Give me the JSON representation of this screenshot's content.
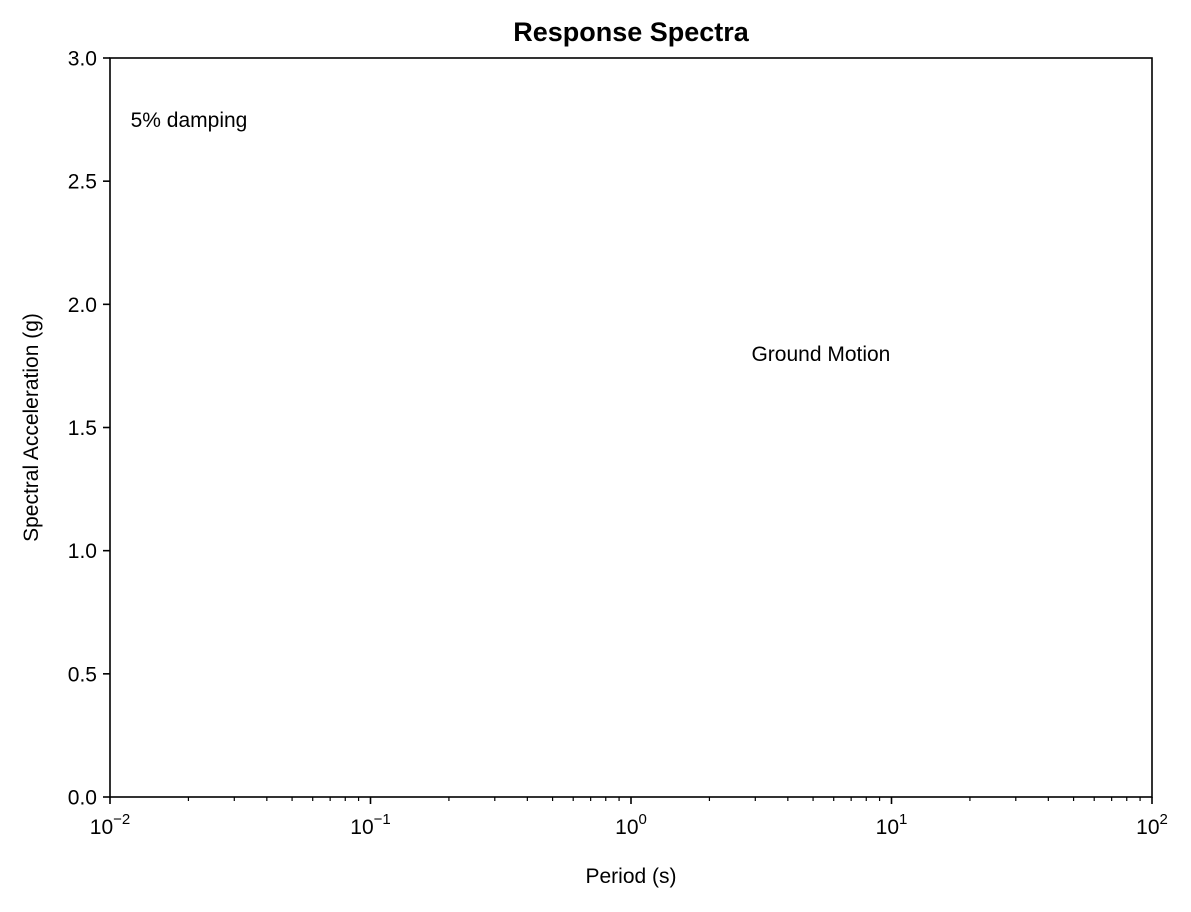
{
  "chart_data": {
    "type": "line",
    "title": "Response Spectra",
    "xlabel": "Period (s)",
    "ylabel": "Spectral Acceleration (g)",
    "xscale": "log",
    "xlim": [
      0.01,
      100
    ],
    "ylim": [
      0.0,
      3.0
    ],
    "grid": false,
    "legend": "none",
    "x_ticks": [
      {
        "value": 0.01,
        "base": "10",
        "exp": "−2"
      },
      {
        "value": 0.1,
        "base": "10",
        "exp": "−1"
      },
      {
        "value": 1,
        "base": "10",
        "exp": "0"
      },
      {
        "value": 10,
        "base": "10",
        "exp": "1"
      },
      {
        "value": 100,
        "base": "10",
        "exp": "2"
      }
    ],
    "y_ticks": [
      {
        "value": 0.0,
        "label": "0.0"
      },
      {
        "value": 0.5,
        "label": "0.5"
      },
      {
        "value": 1.0,
        "label": "1.0"
      },
      {
        "value": 1.5,
        "label": "1.5"
      },
      {
        "value": 2.0,
        "label": "2.0"
      },
      {
        "value": 2.5,
        "label": "2.5"
      },
      {
        "value": 3.0,
        "label": "3.0"
      }
    ],
    "series": [],
    "annotations": [
      {
        "text": "5% damping",
        "x": 0.012,
        "y": 2.75
      },
      {
        "text": "Ground Motion",
        "x": 2.9,
        "y": 1.8
      }
    ]
  }
}
